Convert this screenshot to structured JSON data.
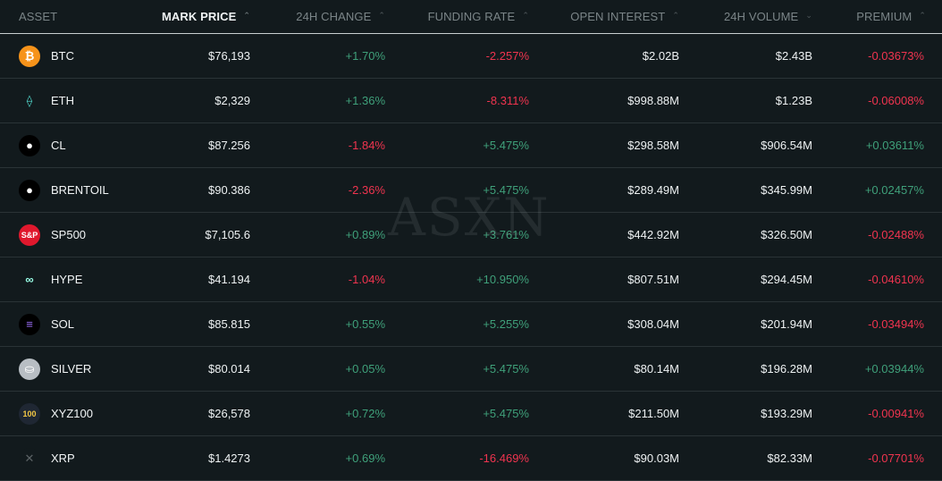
{
  "columns": {
    "asset": "ASSET",
    "mark_price": "MARK PRICE",
    "change_24h": "24H CHANGE",
    "funding_rate": "FUNDING RATE",
    "open_interest": "OPEN INTEREST",
    "volume_24h": "24H VOLUME",
    "premium": "PREMIUM"
  },
  "sort_glyphs": {
    "up": "⌃",
    "down": "⌄"
  },
  "watermark": "ASXN",
  "rows": [
    {
      "icon": "bitcoin-icon",
      "glyph": "₿",
      "icon_bg": "#f7931a",
      "icon_fg": "#ffffff",
      "asset": "BTC",
      "price": "$76,193",
      "change": "+1.70%",
      "change_dir": "pos",
      "funding": "-2.257%",
      "funding_dir": "neg",
      "oi": "$2.02B",
      "volume": "$2.43B",
      "premium": "-0.03673%",
      "premium_dir": "neg"
    },
    {
      "icon": "ethereum-icon",
      "glyph": "⟠",
      "icon_bg": "#121a1d",
      "icon_fg": "#4fd1c5",
      "asset": "ETH",
      "price": "$2,329",
      "change": "+1.36%",
      "change_dir": "pos",
      "funding": "-8.311%",
      "funding_dir": "neg",
      "oi": "$998.88M",
      "volume": "$1.23B",
      "premium": "-0.06008%",
      "premium_dir": "neg"
    },
    {
      "icon": "oil-drop-icon",
      "glyph": "●",
      "icon_bg": "#000000",
      "icon_fg": "#ffffff",
      "asset": "CL",
      "price": "$87.256",
      "change": "-1.84%",
      "change_dir": "neg",
      "funding": "+5.475%",
      "funding_dir": "pos",
      "oi": "$298.58M",
      "volume": "$906.54M",
      "premium": "+0.03611%",
      "premium_dir": "pos"
    },
    {
      "icon": "oil-drop-icon",
      "glyph": "●",
      "icon_bg": "#000000",
      "icon_fg": "#ffffff",
      "asset": "BRENTOIL",
      "price": "$90.386",
      "change": "-2.36%",
      "change_dir": "neg",
      "funding": "+5.475%",
      "funding_dir": "pos",
      "oi": "$289.49M",
      "volume": "$345.99M",
      "premium": "+0.02457%",
      "premium_dir": "pos"
    },
    {
      "icon": "sp500-icon",
      "glyph": "S&P",
      "icon_bg": "#e0182d",
      "icon_fg": "#ffffff",
      "asset": "SP500",
      "price": "$7,105.6",
      "change": "+0.89%",
      "change_dir": "pos",
      "funding": "+3.761%",
      "funding_dir": "pos",
      "oi": "$442.92M",
      "volume": "$326.50M",
      "premium": "-0.02488%",
      "premium_dir": "neg"
    },
    {
      "icon": "hyperliquid-icon",
      "glyph": "∞",
      "icon_bg": "#121a1d",
      "icon_fg": "#97fce4",
      "asset": "HYPE",
      "price": "$41.194",
      "change": "-1.04%",
      "change_dir": "neg",
      "funding": "+10.950%",
      "funding_dir": "pos",
      "oi": "$807.51M",
      "volume": "$294.45M",
      "premium": "-0.04610%",
      "premium_dir": "neg"
    },
    {
      "icon": "solana-icon",
      "glyph": "≡",
      "icon_bg": "#000000",
      "icon_fg": "#9b6cf6",
      "asset": "SOL",
      "price": "$85.815",
      "change": "+0.55%",
      "change_dir": "pos",
      "funding": "+5.255%",
      "funding_dir": "pos",
      "oi": "$308.04M",
      "volume": "$201.94M",
      "premium": "-0.03494%",
      "premium_dir": "neg"
    },
    {
      "icon": "silver-icon",
      "glyph": "⛀",
      "icon_bg": "#b8bec4",
      "icon_fg": "#ffffff",
      "asset": "SILVER",
      "price": "$80.014",
      "change": "+0.05%",
      "change_dir": "pos",
      "funding": "+5.475%",
      "funding_dir": "pos",
      "oi": "$80.14M",
      "volume": "$196.28M",
      "premium": "+0.03944%",
      "premium_dir": "pos"
    },
    {
      "icon": "xyz100-icon",
      "glyph": "100",
      "icon_bg": "#1f2733",
      "icon_fg": "#f2c744",
      "asset": "XYZ100",
      "price": "$26,578",
      "change": "+0.72%",
      "change_dir": "pos",
      "funding": "+5.475%",
      "funding_dir": "pos",
      "oi": "$211.50M",
      "volume": "$193.29M",
      "premium": "-0.00941%",
      "premium_dir": "neg"
    },
    {
      "icon": "xrp-icon",
      "glyph": "✕",
      "icon_bg": "#121a1d",
      "icon_fg": "#5c6366",
      "asset": "XRP",
      "price": "$1.4273",
      "change": "+0.69%",
      "change_dir": "pos",
      "funding": "-16.469%",
      "funding_dir": "neg",
      "oi": "$90.03M",
      "volume": "$82.33M",
      "premium": "-0.07701%",
      "premium_dir": "neg"
    }
  ]
}
